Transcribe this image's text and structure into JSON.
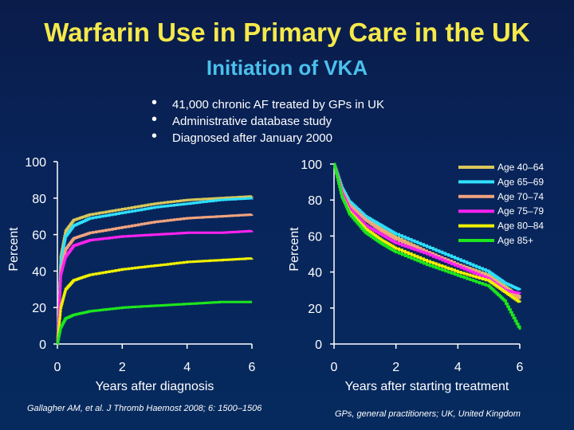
{
  "title": "Warfarin Use in Primary Care in the UK",
  "subtitle": "Initiation of VKA",
  "bullets": [
    "41,000 chronic AF treated by GPs in UK",
    "Administrative database study",
    "Diagnosed after January 2000"
  ],
  "citation": "Gallagher AM, et al. J Thromb Haemost 2008; 6: 1500–1506",
  "footnote": "GPs, general practitioners; UK, United Kingdom",
  "chart_data": [
    {
      "type": "line",
      "xlabel": "Years after diagnosis",
      "ylabel": "Percent",
      "xlim": [
        0,
        6
      ],
      "ylim": [
        0,
        100
      ],
      "xticks": [
        0,
        2,
        4,
        6
      ],
      "yticks": [
        0,
        20,
        40,
        60,
        80,
        100
      ],
      "series": [
        {
          "name": "Age 40–64",
          "color": "#d8c75a",
          "x": [
            0,
            0.1,
            0.25,
            0.5,
            1,
            2,
            3,
            4,
            5,
            6
          ],
          "y": [
            0,
            48,
            62,
            68,
            71,
            74,
            77,
            79,
            80,
            81
          ]
        },
        {
          "name": "Age 65–69",
          "color": "#2fe0ff",
          "x": [
            0,
            0.1,
            0.25,
            0.5,
            1,
            2,
            3,
            4,
            5,
            6
          ],
          "y": [
            0,
            45,
            59,
            65,
            69,
            72,
            75,
            77,
            79,
            80
          ]
        },
        {
          "name": "Age 70–74",
          "color": "#f2a37e",
          "x": [
            0,
            0.1,
            0.25,
            0.5,
            1,
            2,
            3,
            4,
            5,
            6
          ],
          "y": [
            0,
            40,
            52,
            58,
            61,
            64,
            67,
            69,
            70,
            71
          ]
        },
        {
          "name": "Age 75–79",
          "color": "#ff22f0",
          "x": [
            0,
            0.1,
            0.25,
            0.5,
            1,
            2,
            3,
            4,
            5,
            6
          ],
          "y": [
            0,
            38,
            48,
            54,
            57,
            59,
            60,
            61,
            61,
            62
          ]
        },
        {
          "name": "Age 80–84",
          "color": "#f0f000",
          "x": [
            0,
            0.1,
            0.25,
            0.5,
            1,
            2,
            3,
            4,
            5,
            6
          ],
          "y": [
            0,
            20,
            30,
            35,
            38,
            41,
            43,
            45,
            46,
            47
          ]
        },
        {
          "name": "Age 85+",
          "color": "#1de61d",
          "x": [
            0,
            0.1,
            0.25,
            0.5,
            1,
            2,
            3,
            4,
            5,
            6
          ],
          "y": [
            0,
            9,
            14,
            16,
            18,
            20,
            21,
            22,
            23,
            23
          ]
        }
      ]
    },
    {
      "type": "line",
      "xlabel": "Years after starting treatment",
      "ylabel": "Percent",
      "xlim": [
        0,
        6
      ],
      "ylim": [
        0,
        100
      ],
      "xticks": [
        0,
        2,
        4,
        6
      ],
      "yticks": [
        0,
        20,
        40,
        60,
        80,
        100
      ],
      "legend_position": "top-right",
      "series": [
        {
          "name": "Age 40–64",
          "color": "#d8c75a",
          "x": [
            0,
            0.25,
            0.5,
            1,
            1.5,
            2,
            3,
            4,
            5,
            5.5,
            6
          ],
          "y": [
            100,
            86,
            78,
            70,
            64,
            59,
            51,
            44,
            38,
            32,
            26
          ]
        },
        {
          "name": "Age 65–69",
          "color": "#2fe0ff",
          "x": [
            0,
            0.25,
            0.5,
            1,
            1.5,
            2,
            3,
            4,
            5,
            5.5,
            6
          ],
          "y": [
            100,
            87,
            79,
            71,
            66,
            61,
            54,
            47,
            40,
            34,
            30
          ]
        },
        {
          "name": "Age 70–74",
          "color": "#f2a37e",
          "x": [
            0,
            0.25,
            0.5,
            1,
            1.5,
            2,
            3,
            4,
            5,
            5.5,
            6
          ],
          "y": [
            100,
            85,
            77,
            69,
            63,
            58,
            51,
            44,
            37,
            31,
            25
          ]
        },
        {
          "name": "Age 75–79",
          "color": "#ff22f0",
          "x": [
            0,
            0.25,
            0.5,
            1,
            1.5,
            2,
            3,
            4,
            5,
            5.5,
            6
          ],
          "y": [
            100,
            84,
            75,
            66,
            61,
            56,
            50,
            43,
            36,
            30,
            28
          ]
        },
        {
          "name": "Age 80–84",
          "color": "#f0f000",
          "x": [
            0,
            0.25,
            0.5,
            1,
            1.5,
            2,
            3,
            4,
            5,
            5.5,
            6
          ],
          "y": [
            100,
            82,
            73,
            64,
            58,
            53,
            46,
            40,
            35,
            29,
            23
          ]
        },
        {
          "name": "Age 85+",
          "color": "#1de61d",
          "x": [
            0,
            0.25,
            0.5,
            1,
            1.5,
            2,
            3,
            4,
            5,
            5.5,
            6
          ],
          "y": [
            100,
            82,
            72,
            62,
            56,
            51,
            44,
            38,
            32,
            24,
            8
          ]
        }
      ]
    }
  ]
}
